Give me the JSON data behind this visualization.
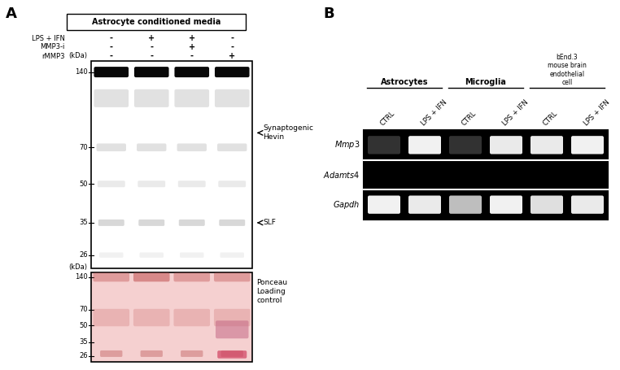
{
  "panel_A_label": "A",
  "panel_B_label": "B",
  "background_color": "#ffffff",
  "western_title": "Astrocyte conditioned media",
  "wb_row_labels": [
    "LPS + IFN",
    "MMP3-i",
    "rMMP3"
  ],
  "wb_col_signs": [
    [
      "-",
      "+",
      "+",
      "-"
    ],
    [
      "-",
      "-",
      "+",
      "-"
    ],
    [
      "-",
      "-",
      "-",
      "+"
    ]
  ],
  "wb_kda_labels": [
    140,
    70,
    50,
    35,
    26
  ],
  "wb_annotation1": "Synaptogenic\nHevin",
  "wb_annotation2": "SLF",
  "ponceau_title": "Ponceau\nLoading\ncontrol",
  "ponceau_bg": "#f5d0d0",
  "gel_group_labels": [
    "Astrocytes",
    "Microglia"
  ],
  "gel_group3_label": "bEnd.3\nmouse brain\nendothelial\ncell",
  "gel_col_labels": [
    "CTRL",
    "LPS + IFN",
    "CTRL",
    "LPS + IFN",
    "CTRL",
    "LPS + IFN"
  ],
  "gel_gene_labels": [
    "Mmp3",
    "Adamts4",
    "Gapdh"
  ],
  "gel_bg": "#000000",
  "gel_band_color": "#ffffff"
}
